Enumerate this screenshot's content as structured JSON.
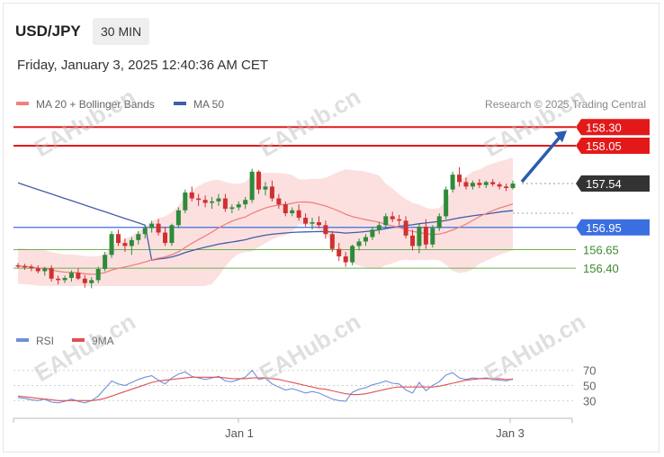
{
  "header": {
    "symbol": "USD/JPY",
    "timeframe": "30 MIN",
    "datetime": "Friday, January 3, 2025 12:40:36 AM CET"
  },
  "credit": "Research © 2025 Trading Central",
  "watermark": "EAHub.cn",
  "colors": {
    "bull": "#2e8b3a",
    "bear": "#d03030",
    "ma20": "#f08080",
    "band": "#fbd6d6",
    "ma50": "#3f5fa6",
    "resistance": "#e31919",
    "support_green": "#69b34c",
    "blue_level": "#3b6fe0",
    "rsi": "#6f8fdb",
    "rsi_ma": "#e05050",
    "arrow": "#2a5db0"
  },
  "chart_data": [
    {
      "type": "candlestick",
      "title": "USD/JPY",
      "timeframe": "30 MIN",
      "x_tick_labels": [
        "Jan 1",
        "Jan 3"
      ],
      "legend": [
        "MA 20 + Bollinger Bands",
        "MA 50"
      ],
      "price_labels": [
        {
          "value": 158.3,
          "label": "158.30",
          "kind": "resistance"
        },
        {
          "value": 158.05,
          "label": "158.05",
          "kind": "resistance"
        },
        {
          "value": 157.54,
          "label": "157.54",
          "kind": "last"
        },
        {
          "value": 156.95,
          "label": "156.95",
          "kind": "level"
        },
        {
          "value": 156.65,
          "label": "156.65",
          "kind": "support"
        },
        {
          "value": 156.4,
          "label": "156.40",
          "kind": "support"
        }
      ],
      "arrow": {
        "from": 157.54,
        "to": 158.3,
        "direction": "up"
      },
      "candles": [
        [
          156.44,
          156.47,
          156.4,
          156.43
        ],
        [
          156.43,
          156.46,
          156.38,
          156.42
        ],
        [
          156.42,
          156.45,
          156.36,
          156.4
        ],
        [
          156.4,
          156.44,
          156.33,
          156.36
        ],
        [
          156.36,
          156.42,
          156.3,
          156.4
        ],
        [
          156.4,
          156.44,
          156.22,
          156.26
        ],
        [
          156.26,
          156.3,
          156.18,
          156.24
        ],
        [
          156.24,
          156.3,
          156.2,
          156.27
        ],
        [
          156.27,
          156.37,
          156.22,
          156.34
        ],
        [
          156.34,
          156.4,
          156.24,
          156.26
        ],
        [
          156.26,
          156.31,
          156.14,
          156.2
        ],
        [
          156.2,
          156.28,
          156.13,
          156.24
        ],
        [
          156.24,
          156.42,
          156.2,
          156.39
        ],
        [
          156.39,
          156.62,
          156.36,
          156.58
        ],
        [
          156.58,
          156.9,
          156.54,
          156.86
        ],
        [
          156.86,
          156.92,
          156.7,
          156.74
        ],
        [
          156.74,
          156.8,
          156.62,
          156.7
        ],
        [
          156.7,
          156.82,
          156.58,
          156.78
        ],
        [
          156.78,
          156.9,
          156.72,
          156.86
        ],
        [
          156.86,
          156.98,
          156.8,
          156.94
        ],
        [
          156.94,
          157.04,
          156.88,
          157.0
        ],
        [
          157.0,
          157.06,
          156.84,
          156.88
        ],
        [
          156.88,
          156.96,
          156.7,
          156.74
        ],
        [
          156.74,
          157.0,
          156.7,
          156.98
        ],
        [
          156.98,
          157.22,
          156.94,
          157.18
        ],
        [
          157.18,
          157.46,
          157.14,
          157.42
        ],
        [
          157.42,
          157.5,
          157.3,
          157.34
        ],
        [
          157.34,
          157.4,
          157.24,
          157.32
        ],
        [
          157.32,
          157.38,
          157.22,
          157.28
        ],
        [
          157.28,
          157.36,
          157.2,
          157.3
        ],
        [
          157.3,
          157.4,
          157.24,
          157.34
        ],
        [
          157.34,
          157.4,
          157.16,
          157.2
        ],
        [
          157.2,
          157.26,
          157.14,
          157.22
        ],
        [
          157.22,
          157.3,
          157.18,
          157.26
        ],
        [
          157.26,
          157.36,
          157.2,
          157.32
        ],
        [
          157.32,
          157.74,
          157.28,
          157.7
        ],
        [
          157.7,
          157.72,
          157.4,
          157.46
        ],
        [
          157.46,
          157.56,
          157.38,
          157.5
        ],
        [
          157.5,
          157.58,
          157.3,
          157.34
        ],
        [
          157.34,
          157.4,
          157.2,
          157.26
        ],
        [
          157.26,
          157.3,
          157.1,
          157.14
        ],
        [
          157.14,
          157.22,
          157.1,
          157.18
        ],
        [
          157.18,
          157.26,
          157.04,
          157.08
        ],
        [
          157.08,
          157.14,
          156.96,
          157.0
        ],
        [
          157.0,
          157.08,
          156.92,
          157.02
        ],
        [
          157.02,
          157.1,
          156.94,
          156.98
        ],
        [
          156.98,
          157.04,
          156.8,
          156.86
        ],
        [
          156.86,
          156.9,
          156.62,
          156.66
        ],
        [
          156.66,
          156.74,
          156.5,
          156.56
        ],
        [
          156.56,
          156.62,
          156.42,
          156.48
        ],
        [
          156.48,
          156.72,
          156.44,
          156.7
        ],
        [
          156.7,
          156.8,
          156.64,
          156.76
        ],
        [
          156.76,
          156.86,
          156.7,
          156.82
        ],
        [
          156.82,
          156.96,
          156.78,
          156.92
        ],
        [
          156.92,
          157.02,
          156.86,
          156.98
        ],
        [
          156.98,
          157.14,
          156.94,
          157.1
        ],
        [
          157.1,
          157.16,
          157.02,
          157.06
        ],
        [
          157.06,
          157.12,
          156.98,
          157.04
        ],
        [
          157.04,
          157.1,
          156.8,
          156.84
        ],
        [
          156.84,
          156.92,
          156.64,
          156.7
        ],
        [
          156.7,
          157.0,
          156.6,
          156.96
        ],
        [
          156.96,
          157.06,
          156.66,
          156.72
        ],
        [
          156.72,
          156.98,
          156.68,
          156.94
        ],
        [
          156.94,
          157.14,
          156.9,
          157.1
        ],
        [
          157.1,
          157.5,
          157.06,
          157.46
        ],
        [
          157.46,
          157.7,
          157.42,
          157.66
        ],
        [
          157.66,
          157.76,
          157.5,
          157.56
        ],
        [
          157.56,
          157.62,
          157.46,
          157.5
        ],
        [
          157.5,
          157.58,
          157.46,
          157.55
        ],
        [
          157.55,
          157.6,
          157.48,
          157.52
        ],
        [
          157.52,
          157.58,
          157.48,
          157.56
        ],
        [
          157.56,
          157.6,
          157.5,
          157.53
        ],
        [
          157.53,
          157.56,
          157.46,
          157.5
        ],
        [
          157.5,
          157.54,
          157.44,
          157.48
        ],
        [
          157.48,
          157.58,
          157.46,
          157.54
        ]
      ]
    },
    {
      "type": "line",
      "title": "RSI",
      "legend": [
        "RSI",
        "9MA"
      ],
      "y_ticks": [
        70,
        50,
        30
      ],
      "series": [
        {
          "name": "RSI",
          "values": [
            34,
            33,
            31,
            30,
            32,
            28,
            27,
            29,
            32,
            29,
            27,
            30,
            36,
            46,
            56,
            52,
            50,
            54,
            58,
            61,
            63,
            57,
            52,
            60,
            65,
            68,
            62,
            60,
            58,
            60,
            62,
            56,
            55,
            58,
            61,
            70,
            58,
            60,
            52,
            48,
            44,
            46,
            43,
            40,
            42,
            40,
            36,
            32,
            30,
            29,
            41,
            45,
            47,
            51,
            53,
            56,
            53,
            52,
            44,
            40,
            54,
            43,
            50,
            55,
            64,
            67,
            60,
            58,
            60,
            59,
            60,
            58,
            57,
            56,
            59
          ]
        },
        {
          "name": "9MA",
          "values": [
            36,
            35,
            34,
            33,
            32,
            31,
            30,
            30,
            30,
            30,
            30,
            30,
            31,
            33,
            36,
            39,
            42,
            45,
            48,
            51,
            54,
            56,
            57,
            58,
            59,
            60,
            61,
            61,
            61,
            61,
            61,
            60,
            59,
            59,
            59,
            60,
            60,
            60,
            59,
            58,
            56,
            54,
            52,
            50,
            48,
            46,
            45,
            43,
            41,
            39,
            38,
            38,
            39,
            41,
            43,
            45,
            47,
            48,
            48,
            48,
            48,
            48,
            48,
            49,
            51,
            53,
            55,
            57,
            58,
            59,
            59,
            59,
            59,
            58,
            58
          ]
        }
      ]
    }
  ]
}
